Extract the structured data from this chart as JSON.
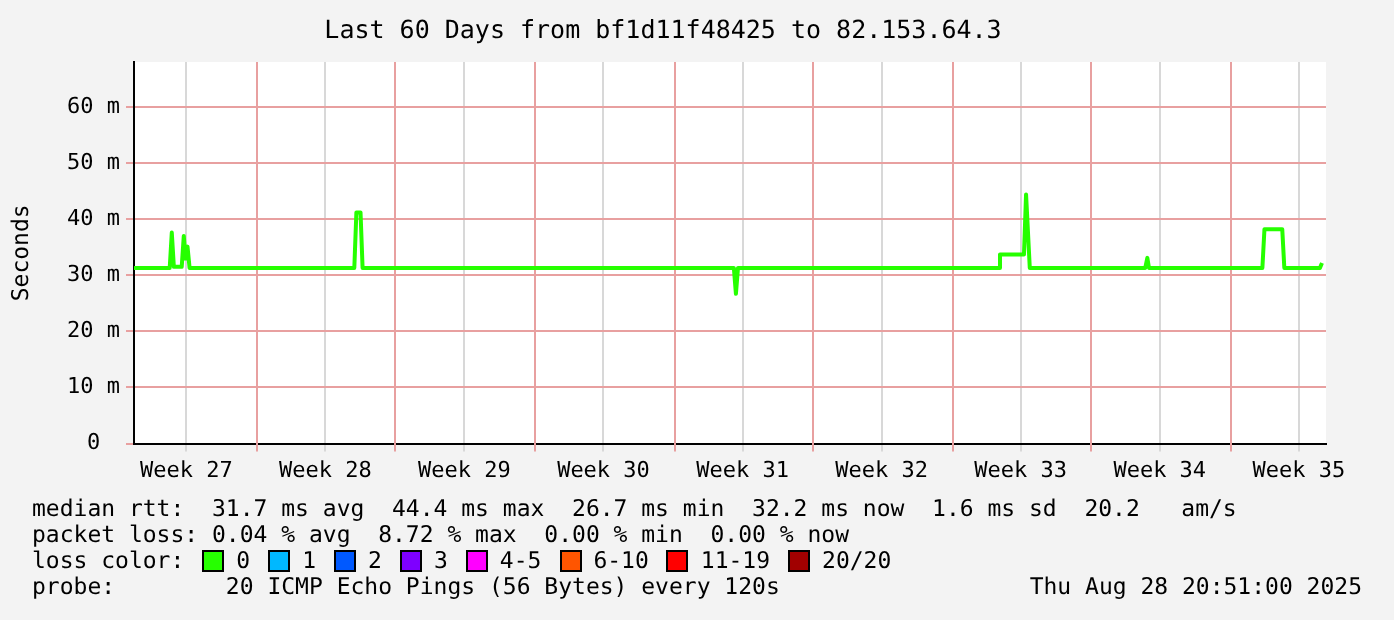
{
  "chart_data": {
    "type": "line",
    "title": "Last 60 Days from bf1d11f48425 to 82.153.64.3",
    "ylabel": "Seconds",
    "xlim": [
      "2025-06-29T20:51",
      "2025-08-28T20:51"
    ],
    "xticks": [
      {
        "value": "2025-07-02T12:00",
        "label": "Week 27"
      },
      {
        "value": "2025-07-06",
        "label": null
      },
      {
        "value": "2025-07-09T12:00",
        "label": "Week 28"
      },
      {
        "value": "2025-07-13",
        "label": null
      },
      {
        "value": "2025-07-16T12:00",
        "label": "Week 29"
      },
      {
        "value": "2025-07-20",
        "label": null
      },
      {
        "value": "2025-07-23T12:00",
        "label": "Week 30"
      },
      {
        "value": "2025-07-27",
        "label": null
      },
      {
        "value": "2025-07-30T12:00",
        "label": "Week 31"
      },
      {
        "value": "2025-08-03",
        "label": null
      },
      {
        "value": "2025-08-06T12:00",
        "label": "Week 32"
      },
      {
        "value": "2025-08-10",
        "label": null
      },
      {
        "value": "2025-08-13T12:00",
        "label": "Week 33"
      },
      {
        "value": "2025-08-17",
        "label": null
      },
      {
        "value": "2025-08-20T12:00",
        "label": "Week 34"
      },
      {
        "value": "2025-08-24",
        "label": null
      },
      {
        "value": "2025-08-27T12:00",
        "label": "Week 35"
      }
    ],
    "ylim": [
      0,
      68
    ],
    "yticks": [
      0,
      {
        "value": 10,
        "label": "10 m"
      },
      {
        "value": 20,
        "label": "20 m"
      },
      {
        "value": 30,
        "label": "30 m"
      },
      {
        "value": 40,
        "label": "40 m"
      },
      {
        "value": 50,
        "label": "50 m"
      },
      {
        "value": 60,
        "label": "60 m"
      }
    ],
    "grid": true,
    "legend": "bottom",
    "legend_title": "loss color:",
    "marker": "none",
    "line_style": "solid",
    "series": [
      {
        "name": "0",
        "color": "#26ff00",
        "x": [
          "2025-06-29T20:51",
          "2025-07-01T16:00",
          "2025-07-01T18:30",
          "2025-07-01T21:00",
          "2025-07-02T06:30",
          "2025-07-02T09:00",
          "2025-07-02T11:00",
          "2025-07-02T13:30",
          "2025-07-02T16:00",
          "2025-07-10T23:00",
          "2025-07-11T01:30",
          "2025-07-11T06:30",
          "2025-07-11T09:00",
          "2025-07-30T01:30",
          "2025-07-30T04:00",
          "2025-07-30T06:30",
          "2025-08-12T09:00",
          "2025-08-12T11:00",
          "2025-08-13T16:00",
          "2025-08-13T18:30",
          "2025-08-13T23:00",
          "2025-08-19T18:30",
          "2025-08-19T21:00",
          "2025-08-19T23:00",
          "2025-08-25T16:00",
          "2025-08-25T18:30",
          "2025-08-26T16:00",
          "2025-08-26T18:30",
          "2025-08-28T13:30",
          "2025-08-28T16:00"
        ],
        "values": [
          31.3,
          31.3,
          37.6,
          31.5,
          31.5,
          37.0,
          33.0,
          35.1,
          31.3,
          31.3,
          41.2,
          41.2,
          31.3,
          31.3,
          26.7,
          31.3,
          31.3,
          33.7,
          33.7,
          44.4,
          31.3,
          31.3,
          33.1,
          31.3,
          31.3,
          38.2,
          38.2,
          31.3,
          31.3,
          32.2
        ]
      },
      {
        "name": "1",
        "color": "#00b8ff"
      },
      {
        "name": "2",
        "color": "#0059ff"
      },
      {
        "name": "3",
        "color": "#7e00ff"
      },
      {
        "name": "4-5",
        "color": "#ff00ff"
      },
      {
        "name": "6-10",
        "color": "#ff5500"
      },
      {
        "name": "11-19",
        "color": "#ff0000"
      },
      {
        "name": "20/20",
        "color": "#a10000"
      }
    ],
    "annotations": [
      "median rtt:  31.7 ms avg  44.4 ms max  26.7 ms min  32.2 ms now  1.6 ms sd  20.2   am/s",
      "packet loss: 0.04 % avg  8.72 % max  0.00 % min  0.00 % now",
      "probe:        20 ICMP Echo Pings (56 Bytes) every 120s",
      "Thu Aug 28 20:51:00 2025"
    ]
  }
}
